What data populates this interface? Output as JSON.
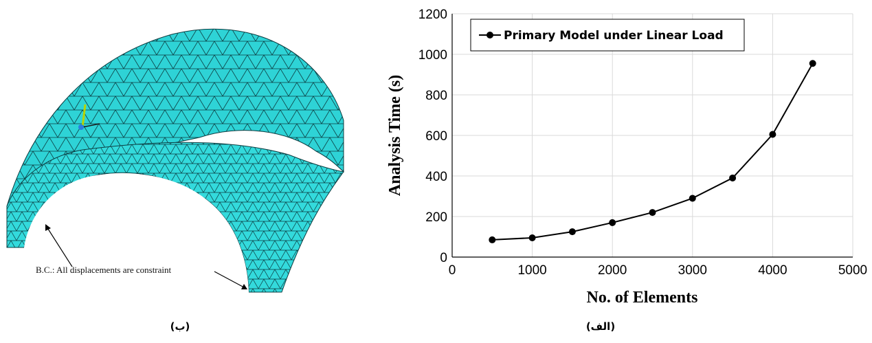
{
  "mesh_figure": {
    "annotation": "B.C.: All displacements are constraint",
    "mesh_color": "#2ed3d6",
    "edge_color": "#0b3c40"
  },
  "captions": {
    "left": "(ب)",
    "right": "(الف)"
  },
  "chart_data": {
    "type": "line",
    "title": "",
    "xlabel": "No. of Elements",
    "ylabel": "Analysis Time (s)",
    "xlim": [
      0,
      5000
    ],
    "ylim": [
      0,
      1200
    ],
    "x_ticks": [
      0,
      1000,
      2000,
      3000,
      4000,
      5000
    ],
    "y_ticks": [
      0,
      200,
      400,
      600,
      800,
      1000,
      1200
    ],
    "grid": true,
    "legend_position": "top-left",
    "line_color": "#000000",
    "grid_color": "#d9d9d9",
    "series": [
      {
        "name": "Primary Model under Linear Load",
        "x": [
          500,
          1000,
          1500,
          2000,
          2500,
          3000,
          3500,
          4000,
          4500
        ],
        "y": [
          85,
          95,
          125,
          170,
          220,
          290,
          390,
          605,
          955
        ]
      }
    ]
  }
}
